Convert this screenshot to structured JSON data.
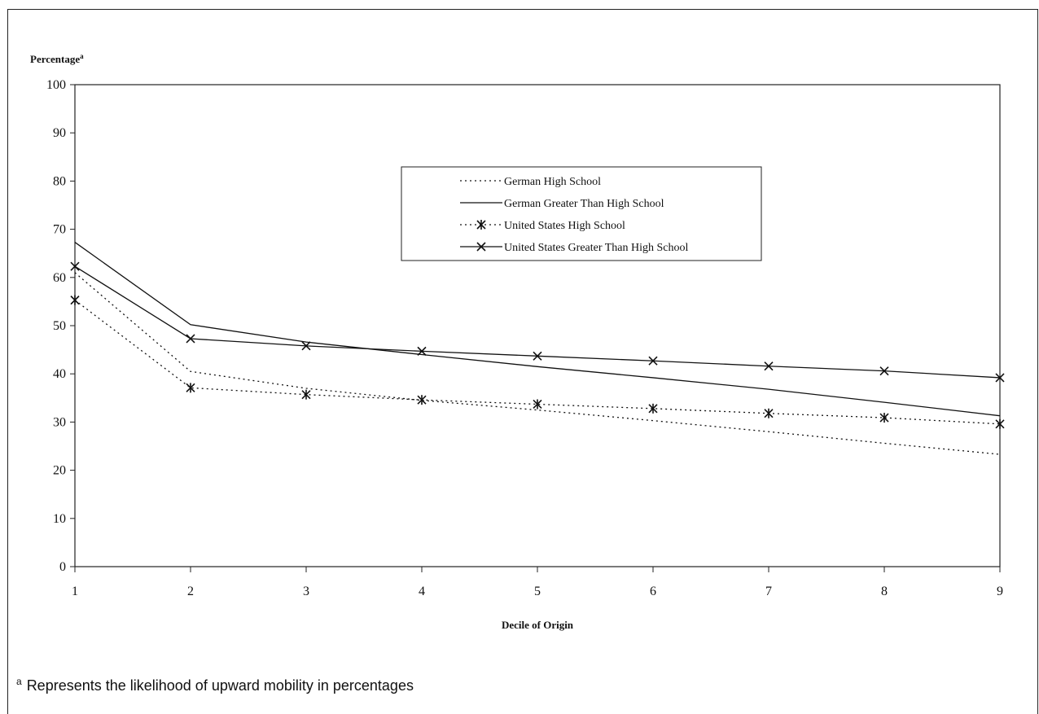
{
  "chart_data": {
    "type": "line",
    "ylabel": "Percentage",
    "ylabel_superscript": "a",
    "xlabel": "Decile of Origin",
    "x": [
      1,
      2,
      3,
      4,
      5,
      6,
      7,
      8,
      9
    ],
    "xlim": [
      1,
      9
    ],
    "ylim": [
      0,
      100
    ],
    "yticks": [
      "0",
      "10",
      "20",
      "30",
      "40",
      "50",
      "60",
      "70",
      "80",
      "90",
      "100"
    ],
    "xticks": [
      "1",
      "2",
      "3",
      "4",
      "5",
      "6",
      "7",
      "8",
      "9"
    ],
    "grid": false,
    "legend_position": "upper-center-right",
    "series": [
      {
        "name": "German High School",
        "style": "dotted",
        "marker": "none",
        "values": [
          61.0,
          40.5,
          37.0,
          34.5,
          32.5,
          30.3,
          28.0,
          25.6,
          23.3
        ]
      },
      {
        "name": "German Greater Than High School",
        "style": "solid",
        "marker": "none",
        "values": [
          67.3,
          50.2,
          46.6,
          44.0,
          41.5,
          39.2,
          36.8,
          34.1,
          31.3
        ]
      },
      {
        "name": "United States High School",
        "style": "dotted",
        "marker": "star",
        "values": [
          55.3,
          37.1,
          35.7,
          34.6,
          33.7,
          32.8,
          31.8,
          30.9,
          29.6
        ]
      },
      {
        "name": "United States Greater Than High School",
        "style": "solid",
        "marker": "x",
        "values": [
          62.3,
          47.3,
          45.8,
          44.7,
          43.7,
          42.7,
          41.6,
          40.6,
          39.2
        ]
      }
    ]
  },
  "footnote": {
    "marker": "a",
    "text": "Represents the likelihood of upward mobility in percentages"
  }
}
